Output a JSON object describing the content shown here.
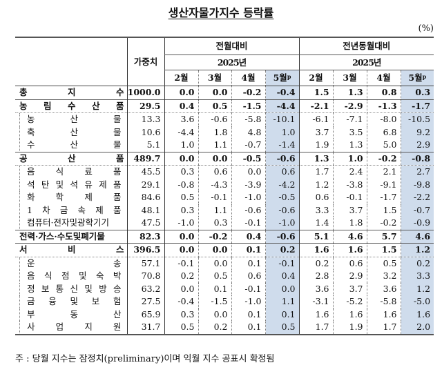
{
  "title": "생산자물가지수 등락률",
  "unit": "(%)",
  "header": {
    "weight_label": "가중치",
    "groups": [
      {
        "label": "전월대비",
        "year": "2025년"
      },
      {
        "label": "전년동월대비",
        "year": "2025년"
      }
    ],
    "months": [
      "2월",
      "3월",
      "4월",
      "5월"
    ],
    "preliminary_mark": "p"
  },
  "highlight_color": "#cfdcec",
  "rows": [
    {
      "label": "총지수",
      "chars": [
        "총",
        "지",
        "수"
      ],
      "level": 0,
      "weight": "1000.0",
      "mom": [
        "0.0",
        "0.0",
        "-0.2",
        "-0.4"
      ],
      "yoy": [
        "1.5",
        "1.3",
        "0.8",
        "0.3"
      ]
    },
    {
      "label": "농림수산품",
      "chars": [
        "농",
        "림",
        "수",
        "산",
        "품"
      ],
      "level": 0,
      "weight": "29.5",
      "mom": [
        "0.4",
        "0.5",
        "-1.5",
        "-4.4"
      ],
      "yoy": [
        "-2.1",
        "-2.9",
        "-1.3",
        "-1.7"
      ]
    },
    {
      "label": "농산물",
      "chars": [
        "농",
        "산",
        "물"
      ],
      "level": 1,
      "weight": "13.3",
      "mom": [
        "3.6",
        "-0.6",
        "-5.8",
        "-10.1"
      ],
      "yoy": [
        "-6.1",
        "-7.1",
        "-8.0",
        "-10.5"
      ]
    },
    {
      "label": "축산물",
      "chars": [
        "축",
        "산",
        "물"
      ],
      "level": 1,
      "weight": "10.6",
      "mom": [
        "-4.4",
        "1.8",
        "4.8",
        "1.0"
      ],
      "yoy": [
        "3.7",
        "3.5",
        "6.8",
        "9.2"
      ]
    },
    {
      "label": "수산물",
      "chars": [
        "수",
        "산",
        "물"
      ],
      "level": 1,
      "weight": "5.1",
      "mom": [
        "1.0",
        "1.1",
        "-0.7",
        "-1.4"
      ],
      "yoy": [
        "1.9",
        "1.3",
        "5.0",
        "2.9"
      ]
    },
    {
      "label": "공산품",
      "chars": [
        "공",
        "산",
        "품"
      ],
      "level": 0,
      "weight": "489.7",
      "mom": [
        "0.0",
        "0.0",
        "-0.5",
        "-0.6"
      ],
      "yoy": [
        "1.3",
        "1.0",
        "-0.2",
        "-0.8"
      ]
    },
    {
      "label": "음식료품",
      "chars": [
        "음",
        "식",
        "료",
        "품"
      ],
      "level": 1,
      "weight": "45.5",
      "mom": [
        "0.3",
        "0.6",
        "0.0",
        "0.6"
      ],
      "yoy": [
        "1.7",
        "2.4",
        "2.1",
        "2.7"
      ]
    },
    {
      "label": "석탄및석유제품",
      "chars": [
        "석",
        "탄",
        "및",
        "석",
        "유",
        "제",
        "품"
      ],
      "level": 1,
      "weight": "29.1",
      "mom": [
        "-0.8",
        "-4.3",
        "-3.9",
        "-4.2"
      ],
      "yoy": [
        "1.2",
        "-3.8",
        "-9.1",
        "-9.8"
      ]
    },
    {
      "label": "화학제품",
      "chars": [
        "화",
        "학",
        "제",
        "품"
      ],
      "level": 1,
      "weight": "84.6",
      "mom": [
        "0.5",
        "-0.1",
        "-1.0",
        "-0.5"
      ],
      "yoy": [
        "0.6",
        "-0.1",
        "-1.7",
        "-2.2"
      ]
    },
    {
      "label": "1차금속제품",
      "chars": [
        "1",
        "차",
        "금",
        "속",
        "제",
        "품"
      ],
      "level": 1,
      "weight": "48.1",
      "mom": [
        "0.3",
        "1.1",
        "-0.6",
        "-0.6"
      ],
      "yoy": [
        "3.3",
        "3.7",
        "1.5",
        "-0.7"
      ]
    },
    {
      "label": "컴퓨터·전자및광학기기",
      "chars": [
        "컴퓨터·전자및광학기기"
      ],
      "level": 1,
      "weight": "47.5",
      "mom": [
        "-1.0",
        "0.3",
        "-0.1",
        "-1.0"
      ],
      "yoy": [
        "1.4",
        "1.8",
        "-0.2",
        "-0.9"
      ]
    },
    {
      "label": "전력·가스·수도및폐기물",
      "chars": [
        "전력·가스·수도및폐기물"
      ],
      "level": 0,
      "weight": "82.3",
      "mom": [
        "0.0",
        "-0.2",
        "0.4",
        "-0.6"
      ],
      "yoy": [
        "5.1",
        "4.6",
        "5.7",
        "4.6"
      ]
    },
    {
      "label": "서비스",
      "chars": [
        "서",
        "비",
        "스"
      ],
      "level": 0,
      "weight": "396.5",
      "mom": [
        "0.0",
        "0.0",
        "0.1",
        "0.2"
      ],
      "yoy": [
        "1.6",
        "1.6",
        "1.5",
        "1.2"
      ]
    },
    {
      "label": "운송",
      "chars": [
        "운",
        "송"
      ],
      "level": 1,
      "weight": "57.1",
      "mom": [
        "-0.1",
        "0.0",
        "0.1",
        "-0.1"
      ],
      "yoy": [
        "0.2",
        "0.6",
        "0.5",
        "0.2"
      ]
    },
    {
      "label": "음식점및숙박",
      "chars": [
        "음",
        "식",
        "점",
        "및",
        "숙",
        "박"
      ],
      "level": 1,
      "weight": "70.8",
      "mom": [
        "0.2",
        "0.5",
        "0.6",
        "0.4"
      ],
      "yoy": [
        "2.8",
        "2.9",
        "3.2",
        "3.3"
      ]
    },
    {
      "label": "정보통신및방송",
      "chars": [
        "정",
        "보",
        "통",
        "신",
        "및",
        "방",
        "송"
      ],
      "level": 1,
      "weight": "63.2",
      "mom": [
        "0.0",
        "0.1",
        "-0.1",
        "0.0"
      ],
      "yoy": [
        "3.6",
        "3.7",
        "3.6",
        "1.2"
      ]
    },
    {
      "label": "금융및보험",
      "chars": [
        "금",
        "융",
        "및",
        "보",
        "험"
      ],
      "level": 1,
      "weight": "27.5",
      "mom": [
        "-0.4",
        "-1.5",
        "-1.0",
        "1.1"
      ],
      "yoy": [
        "-3.1",
        "-5.2",
        "-5.8",
        "-5.0"
      ]
    },
    {
      "label": "부동산",
      "chars": [
        "부",
        "동",
        "산"
      ],
      "level": 1,
      "weight": "65.9",
      "mom": [
        "0.3",
        "0.0",
        "0.1",
        "0.1"
      ],
      "yoy": [
        "1.6",
        "1.6",
        "1.6",
        "1.6"
      ]
    },
    {
      "label": "사업지원",
      "chars": [
        "사",
        "업",
        "지",
        "원"
      ],
      "level": 1,
      "weight": "31.7",
      "mom": [
        "0.5",
        "0.2",
        "0.1",
        "0.5"
      ],
      "yoy": [
        "1.7",
        "1.9",
        "1.7",
        "2.0"
      ]
    }
  ],
  "footnote": "주 : 당월 지수는 잠정치(preliminary)이며 익월 지수 공표시 확정됨"
}
